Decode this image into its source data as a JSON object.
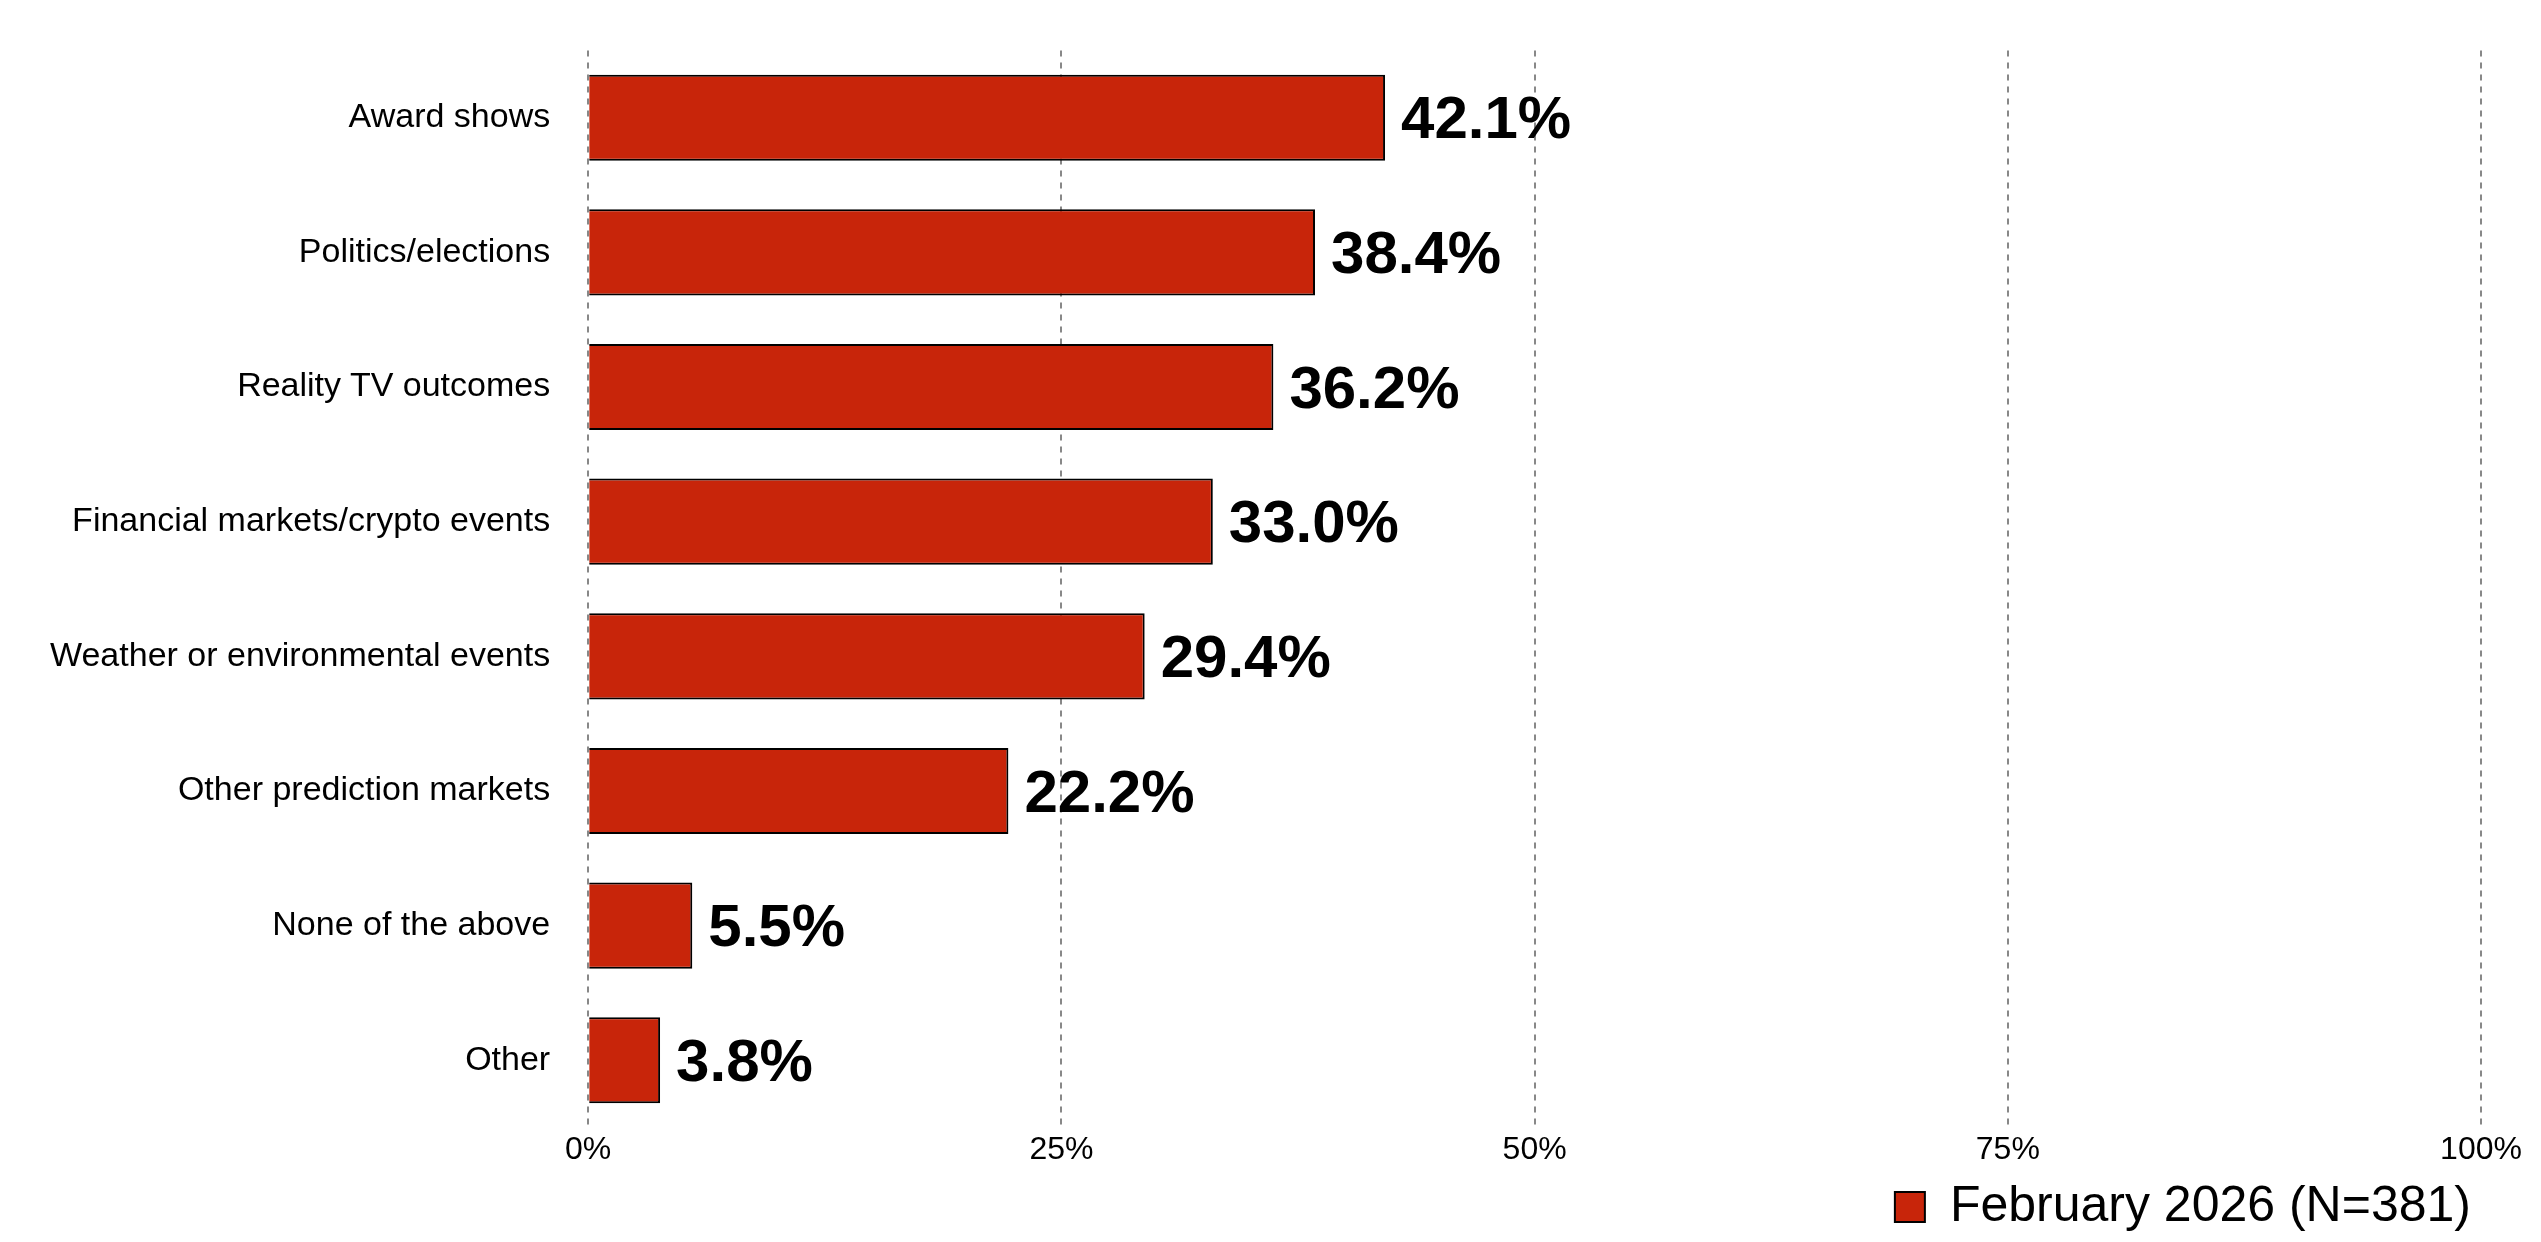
{
  "chart_data": {
    "type": "bar",
    "orientation": "horizontal",
    "categories": [
      "Award shows",
      "Politics/elections",
      "Reality TV outcomes",
      "Financial markets/crypto events",
      "Weather or environmental events",
      "Other prediction markets",
      "None of the above",
      "Other"
    ],
    "series": [
      {
        "name": "February 2026 (N=381)",
        "color": "#c8250a",
        "values": [
          42.1,
          38.4,
          36.2,
          33.0,
          29.4,
          22.2,
          5.5,
          3.8
        ],
        "value_labels": [
          "42.1%",
          "38.4%",
          "36.2%",
          "33.0%",
          "29.4%",
          "22.2%",
          "5.5%",
          "3.8%"
        ]
      }
    ],
    "xlim": [
      0,
      100
    ],
    "xticks": [
      {
        "value": 0,
        "label": "0%"
      },
      {
        "value": 25,
        "label": "25%"
      },
      {
        "value": 50,
        "label": "50%"
      },
      {
        "value": 75,
        "label": "75%"
      },
      {
        "value": 100,
        "label": "100%"
      }
    ],
    "grid": "x",
    "legend": "bottom right"
  }
}
